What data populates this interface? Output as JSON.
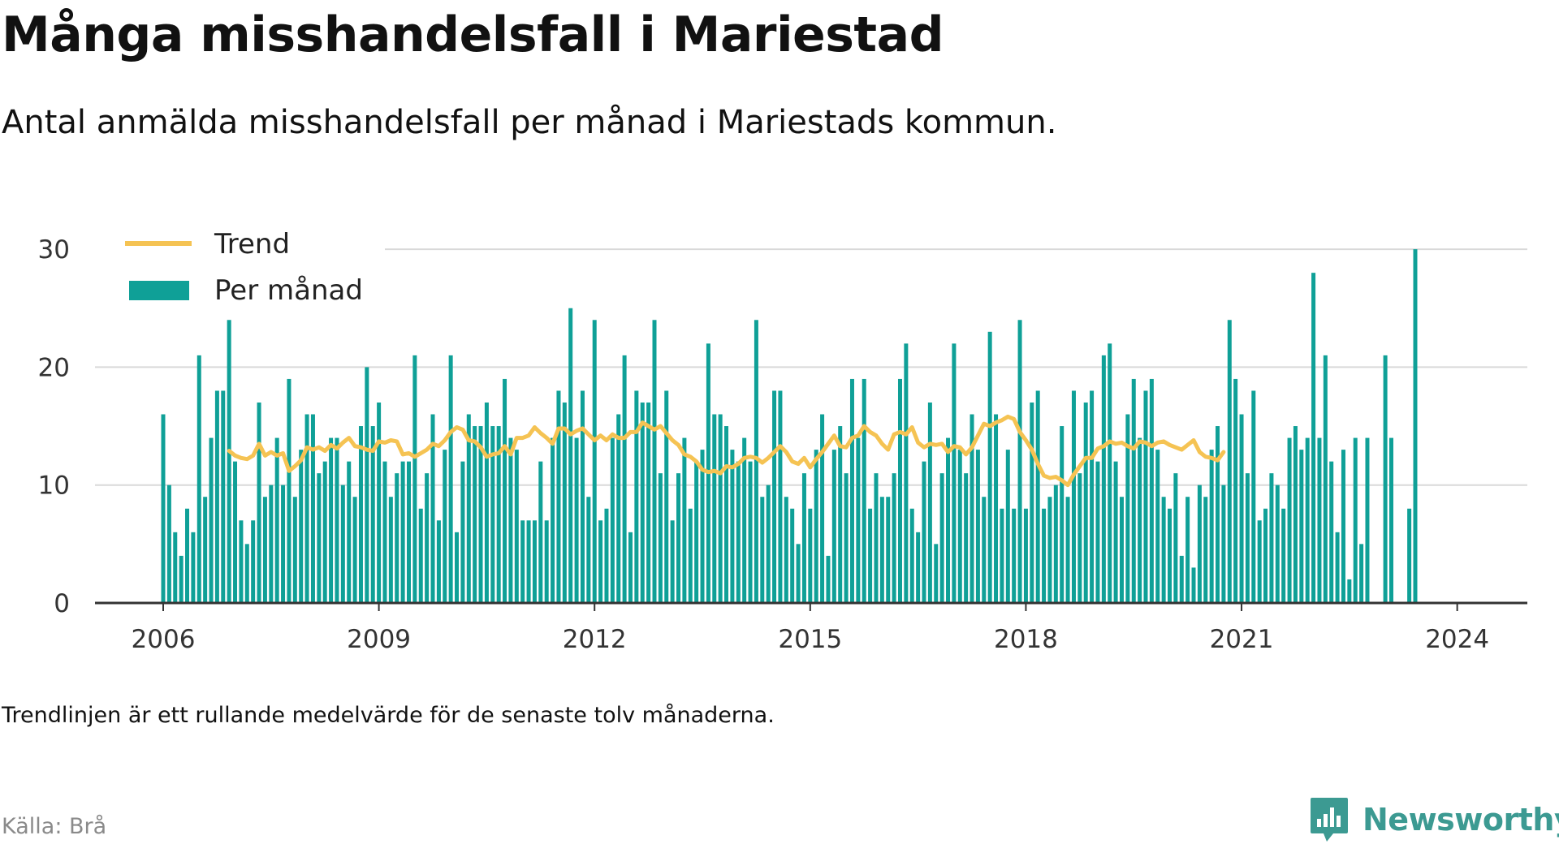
{
  "title": "Många misshandelsfall i Mariestad",
  "subtitle": "Antal anmälda misshandelsfall per månad i Mariestads kommun.",
  "note": "Trendlinjen är ett rullande medelvärde för de senaste tolv månaderna.",
  "source": "Källa: Brå",
  "brand": {
    "name": "Newsworthy",
    "icon": "newsworthy-logo-icon",
    "color": "#3c9a92"
  },
  "chart_data": {
    "type": "bar",
    "x_start": "2006-01",
    "x_interval": "month",
    "x_ticks": [
      "2006",
      "2009",
      "2012",
      "2015",
      "2018",
      "2021",
      "2024"
    ],
    "y_ticks": [
      "0",
      "10",
      "20",
      "30"
    ],
    "ylim": [
      0,
      30
    ],
    "grid": true,
    "legend_position": "top-left",
    "colors": {
      "bars": "#0fa097",
      "trend": "#f5c353",
      "grid": "#d9d9d9",
      "axis": "#333333"
    },
    "series": [
      {
        "name": "Per månad",
        "type": "bar",
        "values": [
          16,
          10,
          6,
          4,
          8,
          6,
          21,
          9,
          14,
          18,
          18,
          24,
          12,
          7,
          5,
          7,
          17,
          9,
          10,
          14,
          10,
          19,
          9,
          13,
          16,
          16,
          11,
          12,
          14,
          14,
          10,
          12,
          9,
          15,
          20,
          15,
          17,
          12,
          9,
          11,
          12,
          12,
          21,
          8,
          11,
          16,
          7,
          13,
          21,
          6,
          12,
          16,
          15,
          15,
          17,
          15,
          15,
          19,
          14,
          13,
          7,
          7,
          7,
          12,
          7,
          14,
          18,
          17,
          25,
          14,
          18,
          9,
          24,
          7,
          8,
          14,
          16,
          21,
          6,
          18,
          17,
          17,
          24,
          11,
          18,
          7,
          11,
          14,
          8,
          12,
          13,
          22,
          16,
          16,
          15,
          13,
          12,
          14,
          12,
          24,
          9,
          10,
          18,
          18,
          9,
          8,
          5,
          11,
          8,
          13,
          16,
          4,
          13,
          15,
          11,
          19,
          14,
          19,
          8,
          11,
          9,
          9,
          11,
          19,
          22,
          8,
          6,
          12,
          17,
          5,
          11,
          14,
          22,
          13,
          11,
          16,
          13,
          9,
          23,
          16,
          8,
          13,
          8,
          24,
          8,
          17,
          18,
          8,
          9,
          10,
          15,
          9,
          18,
          11,
          17,
          18,
          12,
          21,
          22,
          12,
          9,
          16,
          19,
          14,
          18,
          19,
          13,
          9,
          8,
          11,
          4,
          9,
          3,
          10,
          9,
          13,
          15,
          10,
          24,
          19,
          16,
          11,
          18,
          7,
          8,
          11,
          10,
          8,
          14,
          15,
          13,
          14,
          28,
          14,
          21,
          12,
          6,
          13,
          2,
          14,
          5,
          14,
          0,
          0,
          21,
          14,
          0,
          0,
          8,
          30
        ]
      },
      {
        "name": "Trend",
        "type": "line",
        "start_index": 11,
        "values": [
          12.9,
          12.5,
          12.3,
          12.2,
          12.5,
          13.5,
          12.5,
          12.8,
          12.5,
          12.7,
          11.2,
          11.6,
          12.1,
          13.2,
          13.0,
          13.2,
          12.9,
          13.4,
          13.1,
          13.6,
          14.0,
          13.3,
          13.2,
          13.0,
          12.9,
          13.7,
          13.6,
          13.8,
          13.7,
          12.6,
          12.7,
          12.4,
          12.7,
          13.0,
          13.5,
          13.3,
          13.8,
          14.5,
          14.9,
          14.7,
          13.8,
          13.7,
          13.2,
          12.4,
          12.6,
          12.7,
          13.3,
          12.6,
          14.0,
          14.0,
          14.2,
          14.9,
          14.4,
          14.0,
          13.5,
          14.8,
          14.8,
          14.3,
          14.6,
          14.8,
          14.3,
          13.8,
          14.2,
          13.8,
          14.3,
          14.0,
          14.0,
          14.5,
          14.5,
          15.3,
          15.0,
          14.7,
          15.0,
          14.4,
          13.8,
          13.4,
          12.6,
          12.4,
          12.0,
          11.3,
          11.1,
          11.2,
          11.0,
          11.6,
          11.5,
          11.8,
          12.3,
          12.4,
          12.3,
          11.9,
          12.3,
          12.8,
          13.3,
          12.8,
          12.0,
          11.8,
          12.3,
          11.5,
          12.2,
          12.8,
          13.5,
          14.2,
          13.3,
          13.2,
          14.0,
          14.2,
          15.0,
          14.5,
          14.2,
          13.5,
          13.0,
          14.3,
          14.5,
          14.3,
          14.9,
          13.6,
          13.2,
          13.5,
          13.4,
          13.5,
          12.8,
          13.3,
          13.2,
          12.6,
          13.2,
          14.2,
          15.2,
          15.0,
          15.3,
          15.5,
          15.8,
          15.6,
          14.5,
          13.8,
          13.0,
          11.8,
          10.8,
          10.6,
          10.7,
          10.4,
          10.0,
          10.9,
          11.6,
          12.3,
          12.3,
          13.1,
          13.3,
          13.7,
          13.5,
          13.6,
          13.3,
          13.1,
          13.7,
          13.6,
          13.3,
          13.6,
          13.7,
          13.4,
          13.2,
          13.0,
          13.4,
          13.8,
          12.8,
          12.4,
          12.3,
          12.1,
          12.8
        ]
      }
    ]
  }
}
